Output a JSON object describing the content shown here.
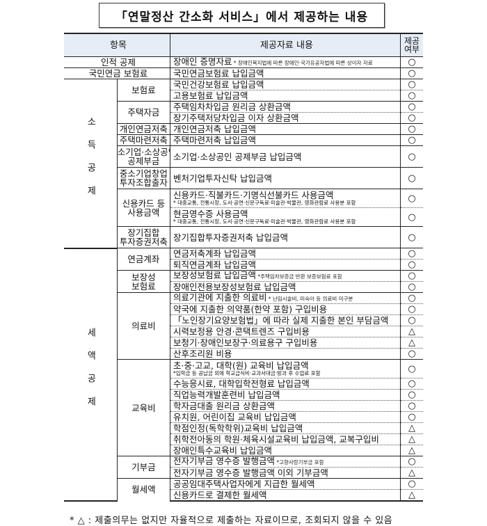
{
  "title": "「연말정산 간소화 서비스」에서 제공하는 내용",
  "headers": {
    "item": "항목",
    "content": "제공자료 내용",
    "provided_line1": "제공",
    "provided_line2": "여부"
  },
  "sections": [
    {
      "item": "인적 공제",
      "contents": [
        {
          "text": "장애인 증명자료",
          "note": "* 장애인복지법에 따른 장애인·국가유공자법에 따른 상이자 자료",
          "mark": "○"
        }
      ]
    },
    {
      "item": "국민연금 보험료",
      "contents": [
        {
          "text": "국민연금보험료 납입금액",
          "mark": "○"
        }
      ]
    },
    {
      "group": "소득공제",
      "subs": [
        {
          "label": "보험료",
          "contents": [
            {
              "text": "국민건강보험료 납입금액",
              "mark": "○"
            },
            {
              "text": "고용보험료 납입금액",
              "mark": "○"
            }
          ]
        },
        {
          "label": "주택자금",
          "contents": [
            {
              "text": "주택임차차입금 원리금 상환금액",
              "mark": "○"
            },
            {
              "text": "장기주택저당차입금 이자 상환금액",
              "mark": "○"
            }
          ]
        },
        {
          "label": "개인연금저축",
          "contents": [
            {
              "text": "개인연금저축 납입금액",
              "mark": "○"
            }
          ]
        },
        {
          "label": "주택마련저축",
          "contents": [
            {
              "text": "주택마련저축 납입금액",
              "mark": "○"
            }
          ]
        },
        {
          "label": "소기업·소상공인\n공제부금",
          "contents": [
            {
              "text": "소기업·소상공인 공제부금 납입금액",
              "mark": "○"
            }
          ]
        },
        {
          "label": "중소기업창업\n투자조합출자",
          "contents": [
            {
              "text": "벤처기업투자신탁 납입금액",
              "mark": "○"
            }
          ]
        },
        {
          "label": "신용카드 등\n사용금액",
          "contents": [
            {
              "text": "신용카드·직불카드·기명식선불카드 사용금액",
              "note_below": "* 대중교통, 전통시장, 도서·공연·신문구독료·미술관·박물관, 영화관람료 사용분 포함",
              "mark": "○"
            },
            {
              "text": "현금영수증 사용금액",
              "note_below": "* 대중교통, 전통시장, 도서·공연·신문구독료·미술관·박물관, 영화관람료 사용분 포함",
              "mark": "○"
            }
          ]
        },
        {
          "label": "장기집합\n투자증권저축",
          "contents": [
            {
              "text": "장기집합투자증권저축 납입금액",
              "mark": "○"
            }
          ]
        }
      ]
    },
    {
      "group": "세액공제",
      "subs": [
        {
          "label": "연금계좌",
          "contents": [
            {
              "text": "연금저축계좌 납입금액",
              "mark": "○"
            },
            {
              "text": "퇴직연금계좌 납입금액",
              "mark": "○"
            }
          ]
        },
        {
          "label": "보장성\n보험료",
          "contents": [
            {
              "text": "보장성보험료 납입금액",
              "note": "*주택임차보증금 반환 보증보험료 포함",
              "mark": "○"
            },
            {
              "text": "장애인전용보장성보험료 납입금액",
              "mark": "○"
            }
          ]
        },
        {
          "label": "의료비",
          "contents": [
            {
              "text": "의료기관에 지출한 의료비",
              "note": "* 난임시술비, 미숙아 등 의료비 미구분",
              "mark": "○"
            },
            {
              "text": "약국에 지출한 의약품(한약 포함) 구입비용",
              "mark": "○"
            },
            {
              "text": "「노인장기요양보험법」에 따라 실제 지출한 본인 부담금액",
              "mark": "○"
            },
            {
              "text": "시력보정용 안경·콘택트렌즈 구입비용",
              "mark": "△"
            },
            {
              "text": "보청기·장애인보장구·의료용구 구입비용",
              "mark": "△"
            },
            {
              "text": "산후조리원 비용",
              "mark": "○"
            }
          ]
        },
        {
          "label": "교육비",
          "contents": [
            {
              "text": "초·중·고교, 대학(원) 교육비 납입금액",
              "note_below": "*입학금 등 공납금 외에 학교급식비·교과서대금·방과 후 수업료 포함",
              "mark": "○"
            },
            {
              "text": "수능응시료, 대학입학전형료 납입금액",
              "mark": "○"
            },
            {
              "text": "직업능력개발훈련비 납입금액",
              "mark": "○"
            },
            {
              "text": "학자금대출 원리금 상환금액",
              "mark": "○"
            },
            {
              "text": "유치원, 어린이집 교육비 납입금액",
              "mark": "○"
            },
            {
              "text": "학점인정(독학학위)교육비 납입금액",
              "mark": "△"
            },
            {
              "text": "취학전아동의 학원·체육시설교육비 납입금액, 교복구입비",
              "mark": "△"
            },
            {
              "text": "장애인특수교육비 납입금액",
              "mark": "△"
            }
          ]
        },
        {
          "label": "기부금",
          "contents": [
            {
              "text": "전자기부금 영수증 발행금액",
              "note": "*고향사랑기부금 포함",
              "mark": "○"
            },
            {
              "text": "전자기부금 영수증 발행금액 이외 기부금액",
              "mark": "△"
            }
          ]
        },
        {
          "label": "월세액",
          "contents": [
            {
              "text": "공공임대주택사업자에게 지급한 월세액",
              "mark": "○"
            },
            {
              "text": "신용카드로 결제한 월세액",
              "mark": "△"
            }
          ]
        }
      ]
    }
  ],
  "footnote": "* △ : 제출의무는 없지만 자율적으로 제출하는 자료이므로, 조회되지 않을 수 있음"
}
